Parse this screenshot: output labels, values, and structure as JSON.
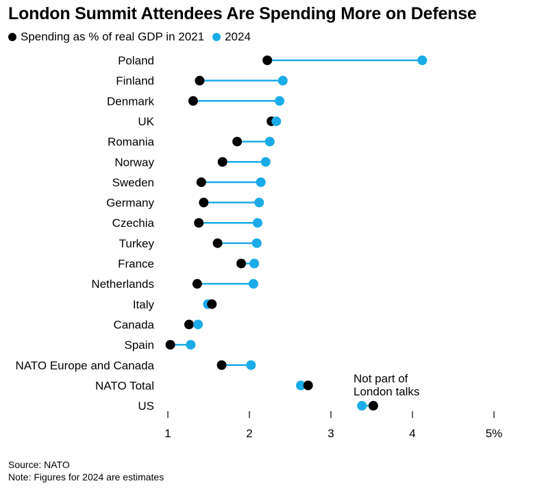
{
  "chart_data": {
    "type": "dot-range",
    "title": "London Summit Attendees Are Spending More on Defense",
    "legend": [
      {
        "label": "Spending as % of real GDP in 2021",
        "color": "#000000"
      },
      {
        "label": "2024",
        "color": "#1AABE8"
      }
    ],
    "categories": [
      "Poland",
      "Finland",
      "Denmark",
      "UK",
      "Romania",
      "Norway",
      "Sweden",
      "Germany",
      "Czechia",
      "Turkey",
      "France",
      "Netherlands",
      "Italy",
      "Canada",
      "Spain",
      "NATO Europe and Canada",
      "NATO Total",
      "US"
    ],
    "series": [
      {
        "name": "Spending as % of real GDP in 2021",
        "values": [
          2.22,
          1.39,
          1.31,
          2.27,
          1.85,
          1.67,
          1.41,
          1.44,
          1.38,
          1.61,
          1.9,
          1.36,
          1.54,
          1.26,
          1.03,
          1.66,
          2.72,
          3.52
        ]
      },
      {
        "name": "2024",
        "values": [
          4.12,
          2.41,
          2.37,
          2.33,
          2.25,
          2.2,
          2.14,
          2.12,
          2.1,
          2.09,
          2.06,
          2.05,
          1.49,
          1.37,
          1.28,
          2.02,
          2.63,
          3.38
        ]
      }
    ],
    "xlim": [
      1,
      5
    ],
    "xticks": [
      {
        "value": 1,
        "label": "1"
      },
      {
        "value": 2,
        "label": "2"
      },
      {
        "value": 3,
        "label": "3"
      },
      {
        "value": 4,
        "label": "4"
      },
      {
        "value": 5,
        "label": "5%"
      }
    ],
    "annotation": [
      "Not part of",
      "London talks"
    ],
    "grid": false
  },
  "footer": {
    "source": "Source: NATO",
    "note": "Note: Figures for 2024 are estimates"
  }
}
